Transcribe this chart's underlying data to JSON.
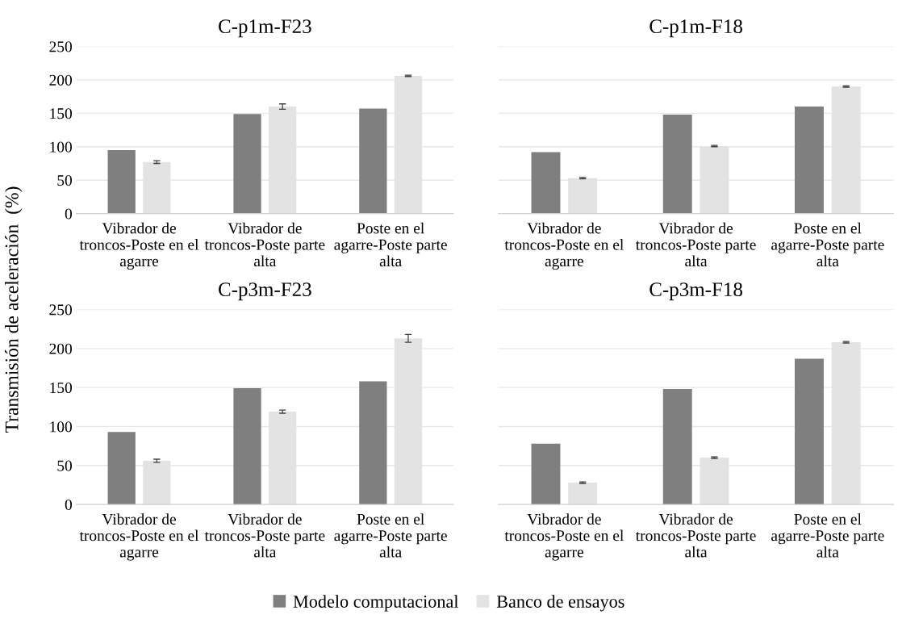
{
  "chart_data": [
    {
      "type": "bar",
      "title": "C-p1m-F23",
      "ylabel": "Transmisión de aceleración  (%)",
      "categories": [
        "Vibrador de troncos-Poste en el agarre",
        "Vibrador de troncos-Poste parte alta",
        "Poste en el agarre-Poste parte alta"
      ],
      "ylim": [
        0,
        250
      ],
      "yticks": [
        0,
        50,
        100,
        150,
        200,
        250
      ],
      "grid": "y",
      "legend": "bottom",
      "series": [
        {
          "name": "Modelo computacional",
          "color": "#7f7f7f",
          "values": [
            95,
            149,
            157
          ]
        },
        {
          "name": "Banco de ensayos",
          "color": "#e3e3e3",
          "values": [
            77,
            160,
            206
          ],
          "errors": [
            2,
            4,
            1
          ]
        }
      ]
    },
    {
      "type": "bar",
      "title": "C-p1m-F18",
      "categories": [
        "Vibrador de troncos-Poste en el agarre",
        "Vibrador de troncos-Poste parte alta",
        "Poste en el agarre-Poste parte alta"
      ],
      "ylim": [
        0,
        250
      ],
      "yticks": [
        0,
        50,
        100,
        150,
        200,
        250
      ],
      "tick_labels": "x",
      "grid": "y",
      "series": [
        {
          "color": "#7f7f7f",
          "values": [
            92,
            148,
            160
          ]
        },
        {
          "color": "#e3e3e3",
          "values": [
            53,
            101,
            190
          ],
          "errors": [
            1,
            1,
            1
          ]
        }
      ]
    },
    {
      "type": "bar",
      "title": "C-p3m-F23",
      "categories": [
        "Vibrador de troncos-Poste en el agarre",
        "Vibrador de troncos-Poste parte alta",
        "Poste en el agarre-Poste parte alta"
      ],
      "ylim": [
        0,
        250
      ],
      "yticks": [
        0,
        50,
        100,
        150,
        200,
        250
      ],
      "grid": "y",
      "series": [
        {
          "color": "#7f7f7f",
          "values": [
            93,
            149,
            158
          ]
        },
        {
          "color": "#e3e3e3",
          "values": [
            56,
            119,
            213
          ],
          "errors": [
            2,
            2,
            5
          ]
        }
      ]
    },
    {
      "type": "bar",
      "title": "C-p3m-F18",
      "categories": [
        "Vibrador de troncos-Poste en el agarre",
        "Vibrador de troncos-Poste parte alta",
        "Poste en el agarre-Poste parte alta"
      ],
      "ylim": [
        0,
        250
      ],
      "yticks": [
        0,
        50,
        100,
        150,
        200,
        250
      ],
      "tick_labels": "x",
      "grid": "y",
      "series": [
        {
          "color": "#7f7f7f",
          "values": [
            78,
            148,
            187
          ]
        },
        {
          "color": "#e3e3e3",
          "values": [
            28,
            60,
            208
          ],
          "errors": [
            1,
            1,
            1
          ]
        }
      ]
    }
  ]
}
